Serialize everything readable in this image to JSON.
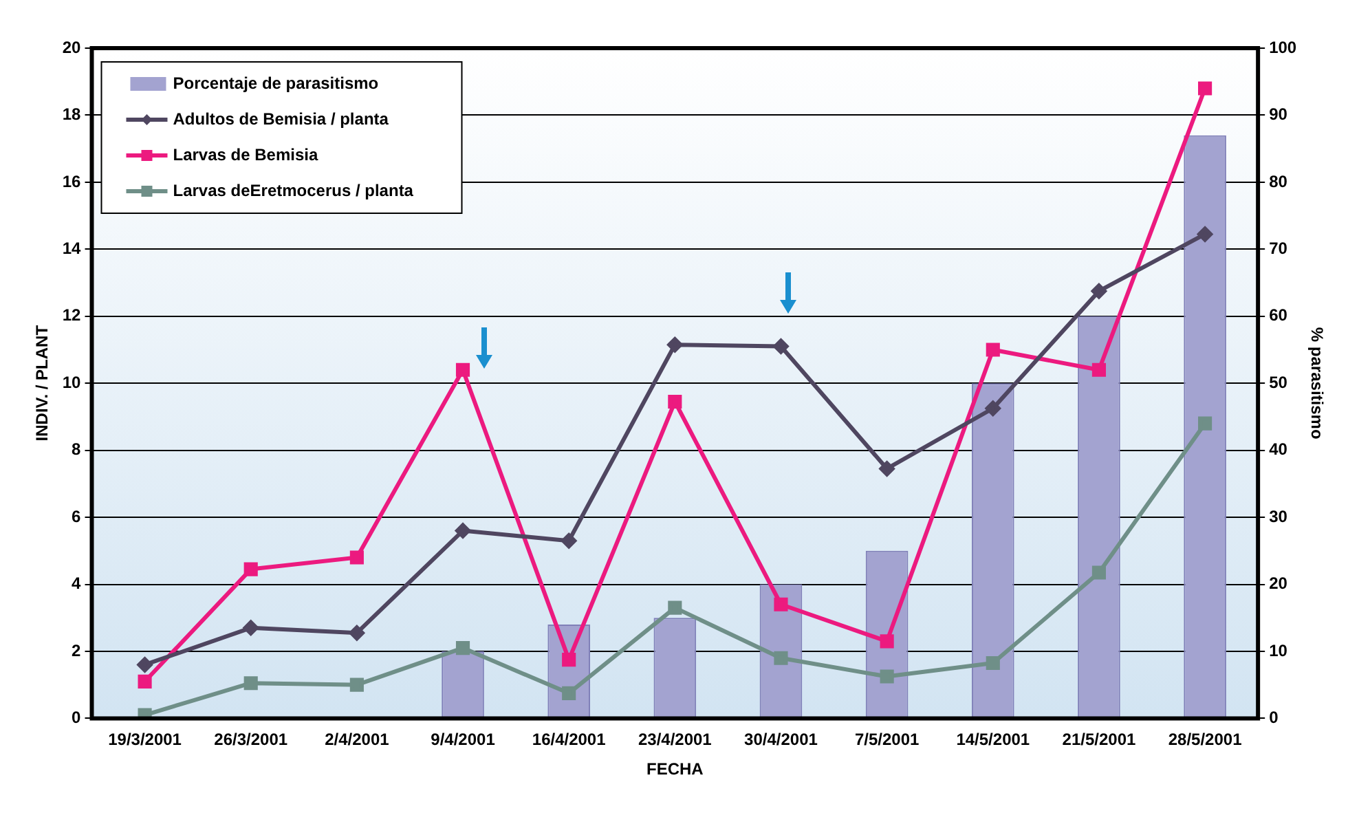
{
  "chart_data": {
    "type": "bar",
    "xlabel": "FECHA",
    "ylabel": "INDIV. / PLANT",
    "y2label": "% parasitismo",
    "categories": [
      "19/3/2001",
      "26/3/2001",
      "2/4/2001",
      "9/4/2001",
      "16/4/2001",
      "23/4/2001",
      "30/4/2001",
      "7/5/2001",
      "14/5/2001",
      "21/5/2001",
      "28/5/2001"
    ],
    "series": [
      {
        "name": "Porcentaje de parasitismo",
        "axis": "y2",
        "color": "#a3a3d0",
        "values": [
          0,
          0,
          0,
          10,
          14,
          15,
          20,
          25,
          50,
          60,
          87
        ]
      },
      {
        "name": "Adultos de Bemisia / planta",
        "type": "line",
        "marker": "diamond",
        "color": "#4f4660",
        "values": [
          1.6,
          2.7,
          2.55,
          5.6,
          5.3,
          11.15,
          11.1,
          7.45,
          9.25,
          12.75,
          14.45
        ]
      },
      {
        "name": "Larvas de Bemisia",
        "type": "line",
        "marker": "square",
        "color": "#ec1a7f",
        "values": [
          1.1,
          4.45,
          4.8,
          10.4,
          1.75,
          9.45,
          3.4,
          2.3,
          11.0,
          10.4,
          18.8
        ]
      },
      {
        "name": "Larvas deEretmocerus / planta",
        "type": "line",
        "marker": "square",
        "color": "#6f8f88",
        "values": [
          0.1,
          1.05,
          1.0,
          2.1,
          0.75,
          3.3,
          1.8,
          1.25,
          1.65,
          4.35,
          8.8
        ]
      }
    ],
    "ylim": [
      0,
      20
    ],
    "yticks": [
      0,
      2,
      4,
      6,
      8,
      10,
      12,
      14,
      16,
      18,
      20
    ],
    "y2lim": [
      0,
      100
    ],
    "y2ticks": [
      0,
      10,
      20,
      30,
      40,
      50,
      60,
      70,
      80,
      90,
      100
    ],
    "grid": "y",
    "legend": "top left"
  }
}
